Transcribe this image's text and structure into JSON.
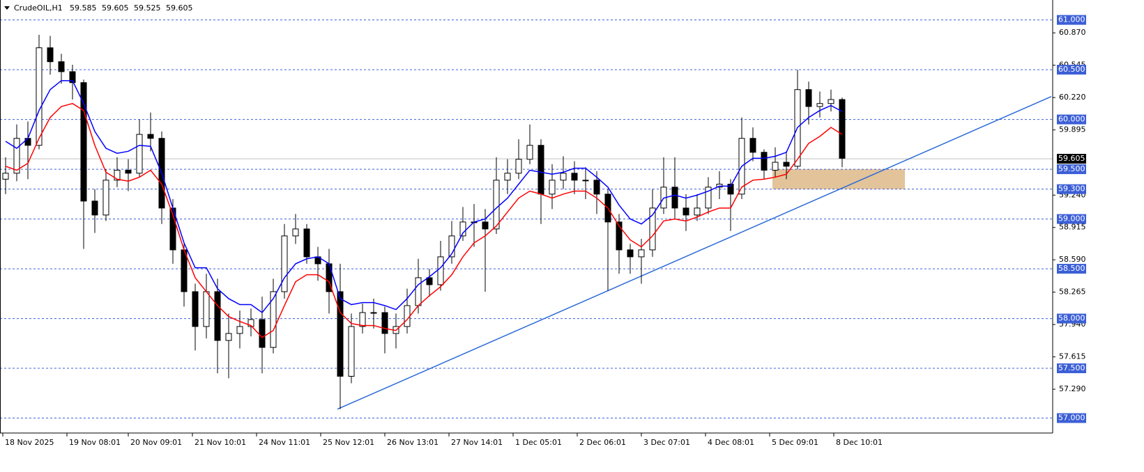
{
  "chart_data": {
    "type": "candlestick",
    "title": "CrudeOIL,H1",
    "quote": [
      59.585,
      59.605,
      59.525,
      59.605
    ],
    "x": [
      2,
      6,
      10,
      14,
      18,
      22,
      26,
      30,
      34,
      38,
      42,
      46,
      50,
      54,
      58,
      62,
      66,
      70,
      74,
      78,
      82,
      86,
      90,
      94,
      98,
      102,
      106,
      110,
      114,
      118,
      122,
      126,
      130,
      134,
      138,
      142,
      146,
      150,
      154,
      158,
      162,
      166,
      170,
      174,
      178,
      182,
      186,
      190,
      194,
      198,
      202,
      206,
      210,
      214,
      218,
      222,
      226,
      230,
      234,
      238,
      242,
      246,
      250,
      254,
      258,
      262,
      266,
      270,
      274,
      278,
      282,
      286,
      290,
      294,
      298,
      302
    ],
    "open": [
      59.4,
      59.46,
      59.81,
      59.74,
      60.72,
      60.58,
      60.48,
      60.37,
      59.18,
      59.04,
      59.39,
      59.49,
      59.46,
      59.85,
      59.81,
      59.11,
      58.69,
      58.27,
      57.92,
      58.27,
      57.78,
      57.85,
      57.92,
      57.99,
      57.71,
      58.27,
      58.83,
      58.9,
      58.62,
      58.55,
      58.27,
      57.42,
      57.92,
      58.06,
      58.06,
      57.85,
      57.92,
      58.13,
      58.41,
      58.34,
      58.62,
      58.83,
      58.97,
      58.97,
      58.9,
      59.39,
      59.46,
      59.6,
      59.74,
      59.25,
      59.39,
      59.46,
      59.39,
      59.39,
      59.25,
      58.97,
      58.69,
      58.62,
      58.69,
      59.11,
      59.32,
      59.11,
      59.04,
      59.11,
      59.32,
      59.35,
      59.25,
      59.81,
      59.67,
      59.49,
      59.57,
      59.53,
      60.3,
      60.13,
      60.16,
      60.2
    ],
    "high": [
      59.62,
      59.95,
      59.98,
      60.85,
      60.84,
      60.66,
      60.55,
      60.4,
      59.3,
      59.5,
      59.62,
      59.6,
      60.0,
      60.07,
      59.88,
      59.2,
      58.75,
      58.35,
      58.45,
      58.4,
      58.05,
      58.08,
      58.1,
      58.22,
      58.4,
      58.95,
      59.05,
      58.95,
      58.72,
      58.7,
      58.55,
      58.05,
      58.15,
      58.2,
      58.12,
      58.05,
      58.3,
      58.6,
      58.5,
      58.78,
      58.98,
      59.12,
      59.15,
      59.1,
      59.62,
      59.6,
      59.8,
      59.95,
      59.8,
      59.55,
      59.63,
      59.58,
      59.52,
      59.48,
      59.3,
      59.05,
      58.75,
      58.8,
      59.3,
      59.62,
      59.62,
      59.25,
      59.25,
      59.42,
      59.48,
      59.4,
      60.02,
      59.92,
      59.7,
      59.72,
      59.68,
      60.5,
      60.38,
      60.28,
      60.3,
      60.22
    ],
    "low": [
      59.25,
      59.38,
      59.4,
      59.7,
      60.45,
      60.36,
      60.2,
      58.7,
      58.86,
      58.98,
      59.32,
      59.28,
      59.42,
      59.68,
      58.95,
      58.55,
      58.12,
      57.68,
      57.8,
      57.45,
      57.4,
      57.7,
      57.82,
      57.45,
      57.65,
      58.2,
      58.75,
      58.55,
      58.38,
      58.05,
      57.09,
      57.35,
      57.85,
      57.9,
      57.65,
      57.7,
      57.85,
      58.05,
      58.22,
      58.28,
      58.55,
      58.78,
      58.72,
      58.27,
      58.85,
      59.25,
      59.4,
      59.55,
      58.95,
      59.1,
      59.3,
      59.25,
      59.2,
      59.05,
      58.28,
      58.45,
      58.45,
      58.35,
      58.62,
      59.05,
      59.0,
      58.88,
      58.98,
      59.05,
      59.2,
      58.88,
      59.2,
      59.58,
      59.4,
      59.42,
      59.4,
      59.5,
      59.95,
      60.02,
      60.08,
      59.52
    ],
    "close": [
      59.46,
      59.81,
      59.74,
      60.72,
      60.58,
      60.48,
      60.37,
      59.18,
      59.04,
      59.39,
      59.49,
      59.46,
      59.85,
      59.81,
      59.11,
      58.69,
      58.27,
      57.92,
      58.27,
      57.78,
      57.85,
      57.92,
      57.99,
      57.71,
      58.27,
      58.83,
      58.9,
      58.62,
      58.55,
      58.27,
      57.42,
      57.92,
      58.06,
      58.06,
      57.85,
      57.92,
      58.13,
      58.41,
      58.34,
      58.62,
      58.83,
      58.97,
      58.97,
      58.9,
      59.39,
      59.46,
      59.6,
      59.74,
      59.25,
      59.39,
      59.46,
      59.39,
      59.39,
      59.25,
      58.97,
      58.69,
      58.62,
      58.69,
      59.11,
      59.32,
      59.11,
      59.04,
      59.11,
      59.32,
      59.35,
      59.25,
      59.81,
      59.67,
      59.49,
      59.57,
      59.53,
      60.3,
      60.13,
      60.16,
      60.2,
      59.61
    ],
    "series": [
      {
        "color": "#0000ff",
        "values": [
          59.78,
          59.71,
          59.81,
          60.09,
          60.3,
          60.39,
          60.39,
          60.16,
          59.88,
          59.71,
          59.66,
          59.68,
          59.74,
          59.73,
          59.46,
          59.11,
          58.76,
          58.51,
          58.51,
          58.3,
          58.2,
          58.14,
          58.14,
          58.06,
          58.2,
          58.41,
          58.55,
          58.6,
          58.62,
          58.55,
          58.2,
          58.14,
          58.16,
          58.16,
          58.13,
          58.09,
          58.2,
          58.34,
          58.42,
          58.51,
          58.65,
          58.86,
          58.97,
          59.0,
          59.11,
          59.21,
          59.35,
          59.49,
          59.47,
          59.45,
          59.47,
          59.51,
          59.51,
          59.42,
          59.32,
          59.14,
          59.0,
          58.95,
          59.04,
          59.21,
          59.24,
          59.21,
          59.24,
          59.28,
          59.33,
          59.33,
          59.53,
          59.61,
          59.61,
          59.63,
          59.67,
          59.92,
          60.02,
          60.09,
          60.14,
          60.08
        ]
      },
      {
        "color": "#ff0000",
        "values": [
          59.53,
          59.49,
          59.56,
          59.81,
          60.02,
          60.13,
          60.16,
          60.09,
          59.74,
          59.47,
          59.4,
          59.38,
          59.42,
          59.49,
          59.35,
          59.04,
          58.69,
          58.41,
          58.27,
          58.13,
          58.02,
          57.97,
          57.93,
          57.81,
          57.88,
          58.13,
          58.37,
          58.44,
          58.44,
          58.37,
          58.06,
          57.95,
          57.93,
          57.93,
          57.9,
          57.88,
          57.99,
          58.13,
          58.23,
          58.32,
          58.44,
          58.62,
          58.76,
          58.83,
          58.93,
          59.07,
          59.21,
          59.28,
          59.25,
          59.21,
          59.25,
          59.28,
          59.28,
          59.21,
          59.11,
          58.93,
          58.79,
          58.72,
          58.83,
          58.98,
          59.0,
          58.98,
          59.02,
          59.07,
          59.11,
          59.11,
          59.32,
          59.39,
          59.4,
          59.42,
          59.45,
          59.6,
          59.76,
          59.83,
          59.92,
          59.85
        ]
      }
    ],
    "trendline": {
      "color": "#2a6ad8",
      "x": [
        121,
        377
      ],
      "y": [
        57.09,
        60.23
      ]
    },
    "zone": {
      "color": "#deb887",
      "x": [
        277,
        324.5
      ],
      "y": [
        59.3,
        59.5
      ]
    },
    "levels": [
      {
        "value": 61,
        "label": "61.000"
      },
      {
        "value": 60.5,
        "label": "60.500"
      },
      {
        "value": 60,
        "label": "60.000"
      },
      {
        "value": 59.5,
        "label": "59.500"
      },
      {
        "value": 59.3,
        "label": "59.300"
      },
      {
        "value": 59,
        "label": "59.000"
      },
      {
        "value": 58.5,
        "label": "58.500"
      },
      {
        "value": 58,
        "label": "58.000"
      },
      {
        "value": 57.5,
        "label": "57.500"
      },
      {
        "value": 57,
        "label": "57.000"
      }
    ],
    "level_color": "#3c5fd6",
    "current_price": 59.605,
    "xlim": [
      0,
      377.5
    ],
    "ylim": [
      56.85,
      61.2
    ],
    "yticks": [
      {
        "value": 60.87,
        "label": "60.870"
      },
      60.545,
      {
        "value": 60.22,
        "label": "60.220"
      },
      59.895,
      {
        "value": 59.24,
        "label": "59.240"
      },
      58.915,
      {
        "value": 58.59,
        "label": "58.590"
      },
      58.265,
      {
        "value": 57.94,
        "label": "57.940"
      },
      57.615,
      {
        "value": 57.29,
        "label": "57.290"
      }
    ],
    "xticks": [
      {
        "value": 1,
        "label": "18 Nov 2025"
      },
      {
        "value": 24,
        "label": "19 Nov 08:01"
      },
      {
        "value": 46,
        "label": "20 Nov 09:01"
      },
      {
        "value": 69,
        "label": "21 Nov 10:01"
      },
      {
        "value": 92,
        "label": "24 Nov 11:01"
      },
      {
        "value": 115,
        "label": "25 Nov 12:01"
      },
      {
        "value": 138,
        "label": "26 Nov 13:01"
      },
      {
        "value": 161,
        "label": "27 Nov 14:01"
      },
      {
        "value": 184,
        "label": "1 Dec 05:01"
      },
      {
        "value": 207,
        "label": "2 Dec 06:01"
      },
      {
        "value": 230,
        "label": "3 Dec 07:01"
      },
      {
        "value": 253,
        "label": "4 Dec 08:01"
      },
      {
        "value": 276,
        "label": "5 Dec 09:01"
      },
      {
        "value": 299,
        "label": "8 Dec 10:01"
      }
    ]
  }
}
